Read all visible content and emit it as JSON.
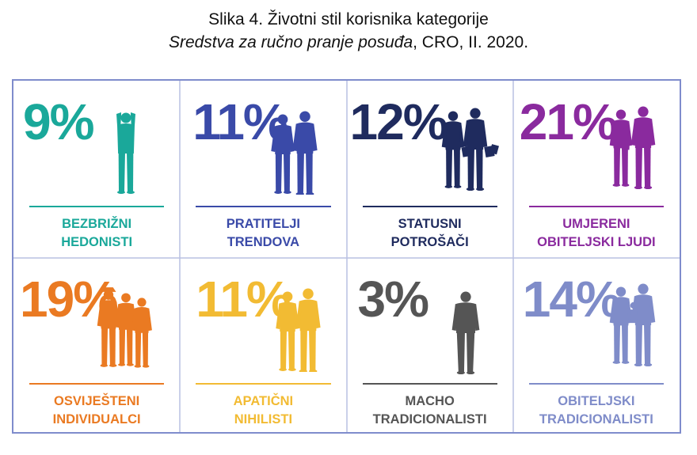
{
  "title": {
    "line1": "Slika 4. Životni stil korisnika kategorije",
    "line2_italic": "Sredstva za ručno pranje posuđa",
    "line2_rest": ", CRO, II. 2020."
  },
  "chart_data": {
    "type": "table",
    "title": "Slika 4. Životni stil korisnika kategorije Sredstva za ručno pranje posuđa, CRO, II. 2020.",
    "unit": "%",
    "segments": [
      {
        "line1": "BEZBRIŽNI",
        "line2": "HEDONISTI",
        "value": 9,
        "display": "9%",
        "color": "#1aa89a",
        "icon": "relaxed-person-icon"
      },
      {
        "line1": "PRATITELJI",
        "line2": "TRENDOVA",
        "value": 11,
        "display": "11%",
        "color": "#3a4aa8",
        "icon": "trendy-couple-icon"
      },
      {
        "line1": "STATUSNI",
        "line2": "POTROŠAČI",
        "value": 12,
        "display": "12%",
        "color": "#1f2b5e",
        "icon": "shopping-couple-icon"
      },
      {
        "line1": "UMJERENI",
        "line2": "OBITELJSKI LJUDI",
        "value": 21,
        "display": "21%",
        "color": "#8a2a9e",
        "icon": "family-icon"
      },
      {
        "line1": "OSVIJEŠTENI",
        "line2": "INDIVIDUALCI",
        "value": 19,
        "display": "19%",
        "color": "#ea7a22",
        "icon": "walking-group-icon"
      },
      {
        "line1": "APATIČNI",
        "line2": "NIHILISTI",
        "value": 11,
        "display": "11%",
        "color": "#f2bb33",
        "icon": "standing-couple-icon"
      },
      {
        "line1": "MACHO",
        "line2": "TRADICIONALISTI",
        "value": 3,
        "display": "3%",
        "color": "#555555",
        "icon": "man-in-suit-icon"
      },
      {
        "line1": "OBITELJSKI",
        "line2": "TRADICIONALISTI",
        "value": 14,
        "display": "14%",
        "color": "#7f8cc9",
        "icon": "parents-with-child-icon"
      }
    ]
  }
}
